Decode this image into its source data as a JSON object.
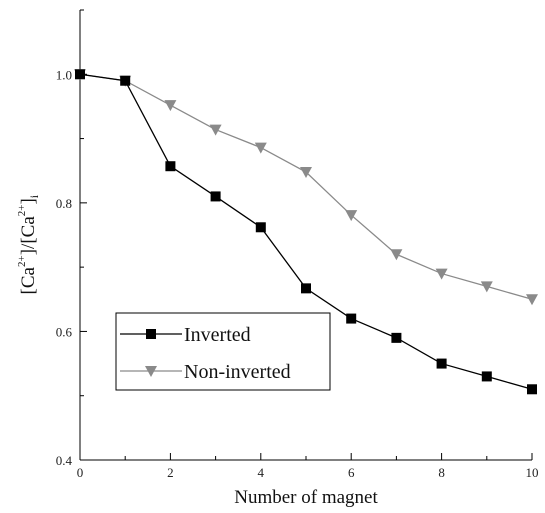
{
  "chart_data": {
    "type": "line",
    "xlabel": "Number of magnet",
    "ylabel": {
      "parts": [
        "[Ca",
        "2+",
        "]/[Ca",
        "2+",
        "]",
        "i"
      ]
    },
    "xlim": [
      0,
      10
    ],
    "ylim": [
      0.4,
      1.1
    ],
    "xticks": [
      0,
      2,
      4,
      6,
      8,
      10
    ],
    "yticks": [
      0.4,
      0.6,
      0.8,
      1.0
    ],
    "xtick_labels": [
      "0",
      "2",
      "4",
      "6",
      "8",
      "10"
    ],
    "ytick_labels": [
      "0.4",
      "0.6",
      "0.8",
      "1.0"
    ],
    "grid": false,
    "legend_position": "bottom-left",
    "series": [
      {
        "name": "Inverted",
        "color": "#000000",
        "marker": "square",
        "x": [
          0,
          1,
          2,
          3,
          4,
          5,
          6,
          7,
          8,
          9,
          10
        ],
        "y": [
          1.0,
          0.99,
          0.857,
          0.81,
          0.762,
          0.667,
          0.62,
          0.59,
          0.55,
          0.53,
          0.51
        ]
      },
      {
        "name": "Non-inverted",
        "color": "#8a8a8a",
        "marker": "triangle-down",
        "x": [
          0,
          1,
          2,
          3,
          4,
          5,
          6,
          7,
          8,
          9,
          10
        ],
        "y": [
          1.0,
          0.99,
          0.952,
          0.914,
          0.886,
          0.848,
          0.781,
          0.72,
          0.69,
          0.67,
          0.65
        ]
      }
    ]
  }
}
